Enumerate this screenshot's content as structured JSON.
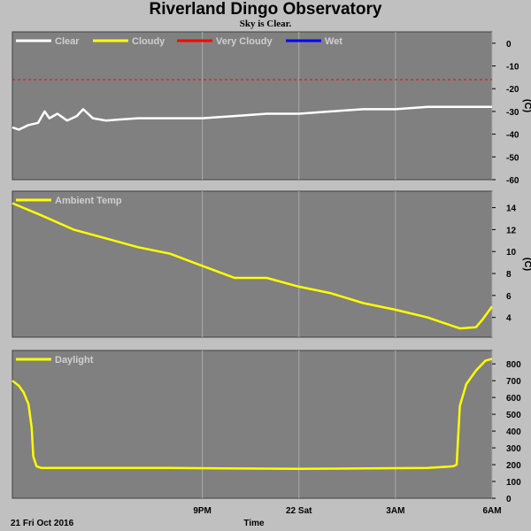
{
  "title": "Riverland Dingo Observatory",
  "subtitle": "Sky is Clear.",
  "x_axis": {
    "title": "Time",
    "date_label": "21 Fri Oct 2016",
    "ticks": [
      {
        "label": "9PM",
        "t": 21
      },
      {
        "label": "22 Sat",
        "t": 24
      },
      {
        "label": "3AM",
        "t": 27
      },
      {
        "label": "6AM",
        "t": 30
      }
    ],
    "range": [
      15.1,
      30.0
    ]
  },
  "colors": {
    "background": "#c0c0c0",
    "plot": "#808080",
    "grid": "#aaaaaa",
    "clear": "#ffffff",
    "cloudy": "#ffff00",
    "very_cloudy": "#ff0000",
    "wet": "#0000ff"
  },
  "chart_data": [
    {
      "type": "line",
      "legend": [
        {
          "name": "Clear",
          "color": "#ffffff"
        },
        {
          "name": "Cloudy",
          "color": "#ffff00"
        },
        {
          "name": "Very Cloudy",
          "color": "#ff0000"
        },
        {
          "name": "Wet",
          "color": "#0000ff"
        }
      ],
      "ylabel": "(C)",
      "ylim": [
        -60,
        5
      ],
      "yticks": [
        0,
        -10,
        -20,
        -30,
        -40,
        -50,
        -60
      ],
      "threshold": {
        "name": "Very Cloudy",
        "y": -16
      },
      "series": [
        {
          "name": "Clear",
          "x": [
            15.1,
            15.3,
            15.6,
            15.9,
            16.1,
            16.25,
            16.5,
            16.8,
            17.1,
            17.3,
            17.6,
            18.0,
            19.0,
            20.0,
            21.0,
            22.0,
            23.0,
            24.0,
            25.0,
            26.0,
            27.0,
            28.0,
            29.0,
            29.5,
            30.0
          ],
          "y": [
            -37,
            -38,
            -36,
            -35,
            -30,
            -33,
            -31,
            -34,
            -32,
            -29,
            -33,
            -34,
            -33,
            -33,
            -33,
            -32,
            -31,
            -31,
            -30,
            -29,
            -29,
            -28,
            -28,
            -28,
            -28
          ]
        }
      ]
    },
    {
      "type": "line",
      "legend": [
        {
          "name": "Ambient Temp",
          "color": "#ffff00"
        }
      ],
      "ylabel": "(C)",
      "ylim": [
        2.2,
        15.5
      ],
      "yticks": [
        4,
        6,
        8,
        10,
        12,
        14
      ],
      "series": [
        {
          "name": "Ambient Temp",
          "x": [
            15.1,
            16.0,
            17.0,
            18.0,
            19.0,
            20.0,
            21.0,
            22.0,
            23.0,
            24.0,
            25.0,
            26.0,
            27.0,
            28.0,
            28.5,
            29.0,
            29.5,
            29.7,
            30.0
          ],
          "y": [
            14.4,
            13.3,
            12.0,
            11.2,
            10.4,
            9.8,
            8.7,
            7.6,
            7.6,
            6.8,
            6.2,
            5.3,
            4.7,
            4.0,
            3.5,
            3.0,
            3.1,
            3.8,
            5.0
          ]
        }
      ]
    },
    {
      "type": "line",
      "legend": [
        {
          "name": "Daylight",
          "color": "#ffff00"
        }
      ],
      "ylabel": "",
      "ylim": [
        0,
        880
      ],
      "yticks": [
        0,
        100,
        200,
        300,
        400,
        500,
        600,
        700,
        800
      ],
      "series": [
        {
          "name": "Daylight",
          "x": [
            15.1,
            15.3,
            15.45,
            15.6,
            15.7,
            15.75,
            15.85,
            16.0,
            20.0,
            24.0,
            28.0,
            28.8,
            28.9,
            29.0,
            29.2,
            29.5,
            29.8,
            30.0
          ],
          "y": [
            700,
            670,
            630,
            560,
            420,
            250,
            190,
            180,
            180,
            175,
            180,
            190,
            200,
            550,
            680,
            760,
            820,
            830
          ]
        }
      ]
    }
  ]
}
